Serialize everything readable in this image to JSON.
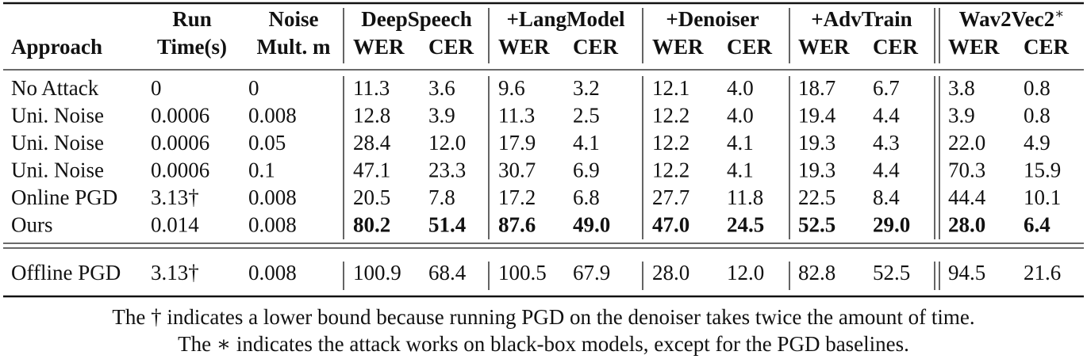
{
  "table": {
    "header": {
      "approach": "Approach",
      "run_time": {
        "line1": "Run",
        "line2": "Time(s)"
      },
      "noise": {
        "line1": "Noise",
        "line2": "Mult. m"
      },
      "groups": [
        {
          "name": "DeepSpeech",
          "metrics": [
            "WER",
            "CER"
          ]
        },
        {
          "name": "+LangModel",
          "metrics": [
            "WER",
            "CER"
          ]
        },
        {
          "name": "+Denoiser",
          "metrics": [
            "WER",
            "CER"
          ]
        },
        {
          "name": "+AdvTrain",
          "metrics": [
            "WER",
            "CER"
          ]
        },
        {
          "name": "Wav2Vec2",
          "note": "∗",
          "metrics": [
            "WER",
            "CER"
          ]
        }
      ]
    },
    "rows": [
      {
        "cells": [
          "No Attack",
          "0",
          "0",
          "11.3",
          "3.6",
          "9.6",
          "3.2",
          "12.1",
          "4.0",
          "18.7",
          "6.7",
          "3.8",
          "0.8"
        ]
      },
      {
        "cells": [
          "Uni. Noise",
          "0.0006",
          "0.008",
          "12.8",
          "3.9",
          "11.3",
          "2.5",
          "12.2",
          "4.0",
          "19.4",
          "4.4",
          "3.9",
          "0.8"
        ]
      },
      {
        "cells": [
          "Uni. Noise",
          "0.0006",
          "0.05",
          "28.4",
          "12.0",
          "17.9",
          "4.1",
          "12.2",
          "4.1",
          "19.3",
          "4.3",
          "22.0",
          "4.9"
        ]
      },
      {
        "cells": [
          "Uni. Noise",
          "0.0006",
          "0.1",
          "47.1",
          "23.3",
          "30.7",
          "6.9",
          "12.2",
          "4.1",
          "19.3",
          "4.4",
          "70.3",
          "15.9"
        ]
      },
      {
        "cells": [
          "Online PGD",
          "3.13†",
          "0.008",
          "20.5",
          "7.8",
          "17.2",
          "6.8",
          "27.7",
          "11.8",
          "22.5",
          "8.4",
          "44.4",
          "10.1"
        ]
      },
      {
        "cells": [
          "Ours",
          "0.014",
          "0.008",
          "80.2",
          "51.4",
          "87.6",
          "49.0",
          "47.0",
          "24.5",
          "52.5",
          "29.0",
          "28.0",
          "6.4"
        ],
        "bold": true
      }
    ],
    "footer_rows": [
      {
        "cells": [
          "Offline PGD",
          "3.13†",
          "0.008",
          "100.9",
          "68.4",
          "100.5",
          "67.9",
          "28.0",
          "12.0",
          "82.8",
          "52.5",
          "94.5",
          "21.6"
        ]
      }
    ]
  },
  "caption": [
    "The † indicates a lower bound because running PGD on the denoiser takes twice the amount of time.",
    "The ∗ indicates the attack works on black-box models, except for the PGD baselines."
  ]
}
